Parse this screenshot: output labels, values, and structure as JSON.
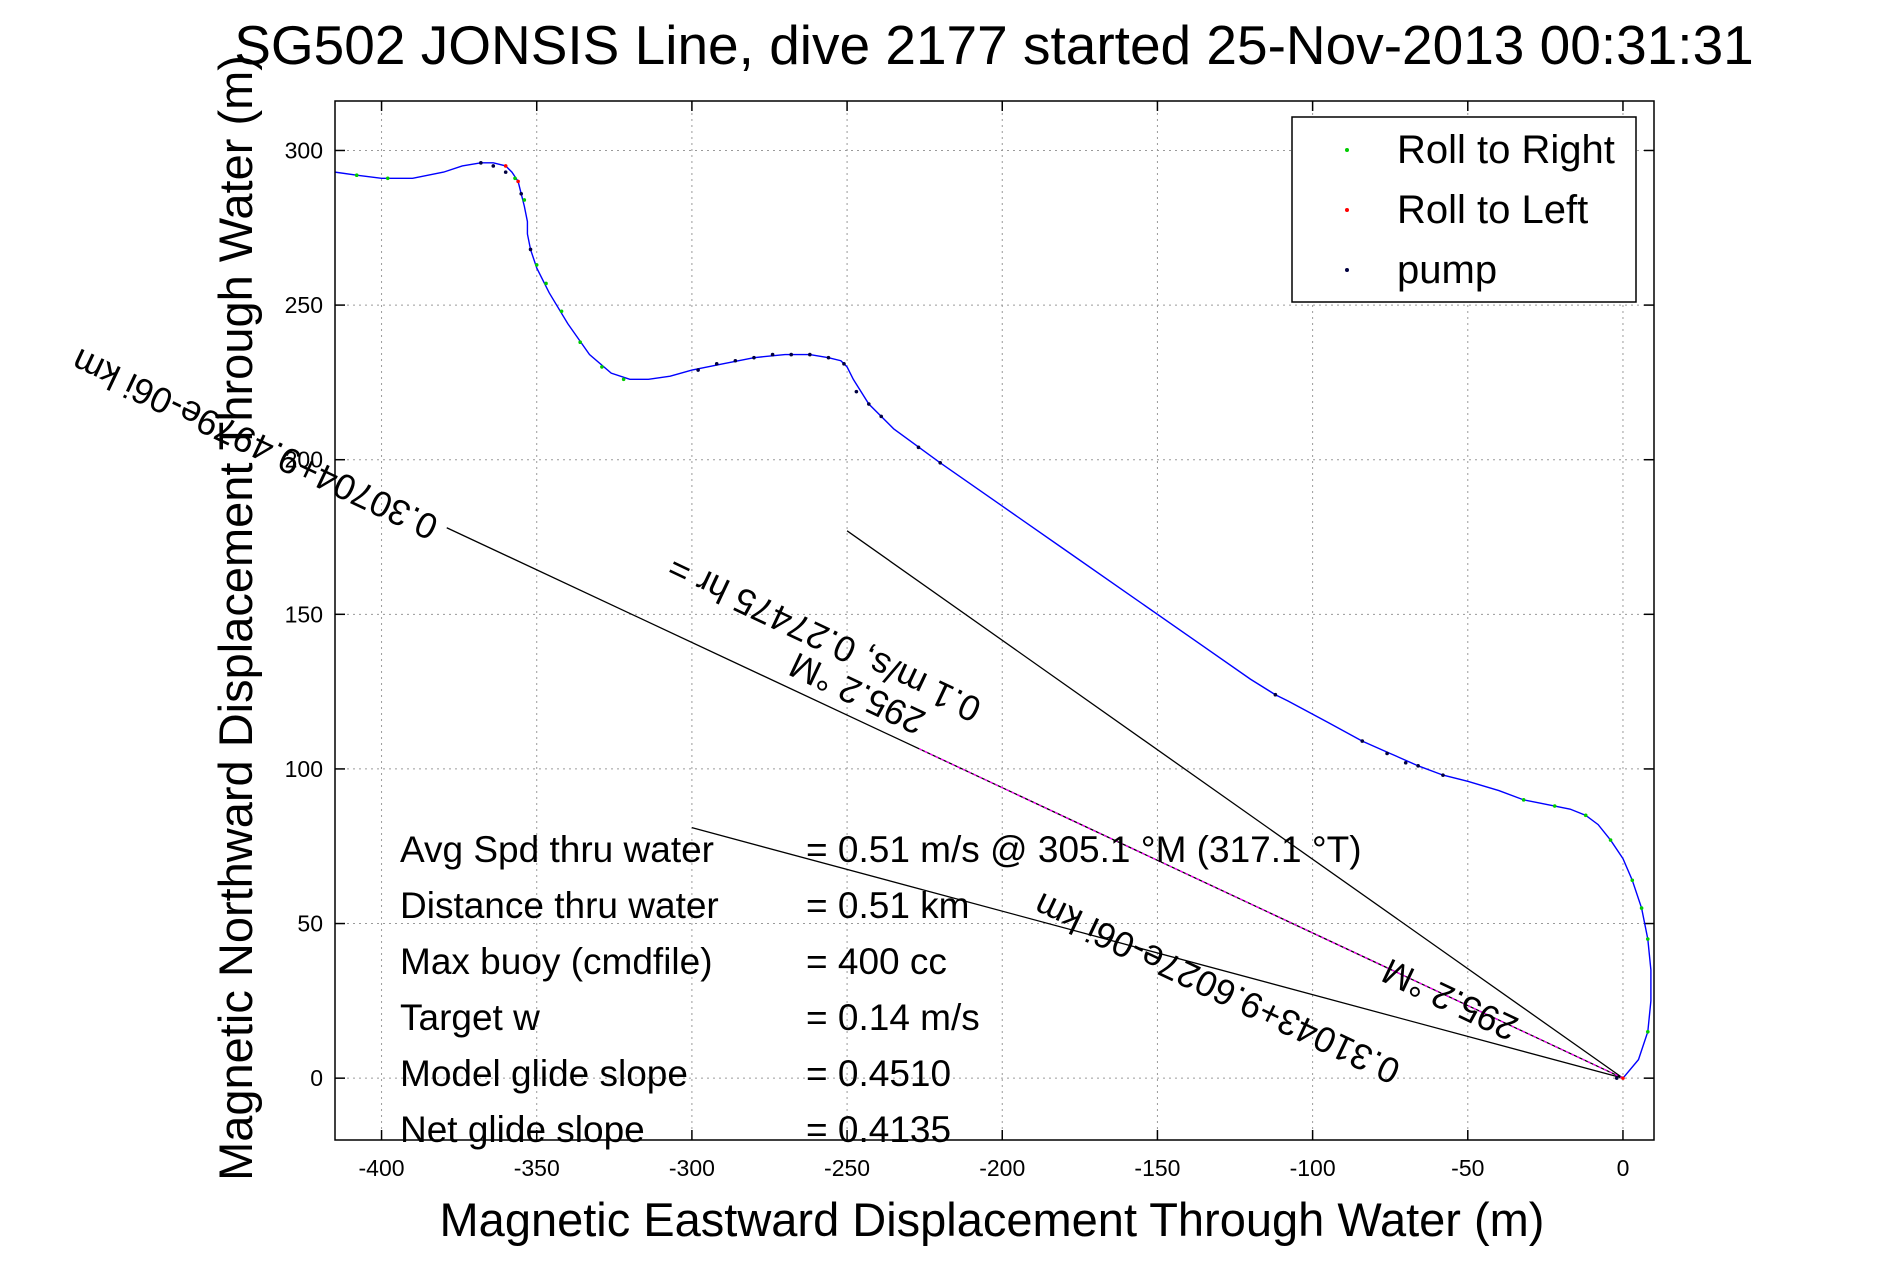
{
  "chart_data": {
    "type": "line",
    "title": "SG502 JONSIS Line, dive 2177 started 25-Nov-2013 00:31:31",
    "xlabel": "Magnetic Eastward Displacement Through Water (m)",
    "ylabel": "Magnetic Northward Displacement Through Water (m)",
    "xlim": [
      -415,
      10
    ],
    "ylim": [
      -20,
      316
    ],
    "xticks": [
      -400,
      -350,
      -300,
      -250,
      -200,
      -150,
      -100,
      -50,
      0
    ],
    "yticks": [
      0,
      50,
      100,
      150,
      200,
      250,
      300
    ],
    "grid": true,
    "legend_position": "top-right",
    "colors": {
      "track": "#0000ff",
      "roll_right": "#00cc00",
      "roll_left": "#ff0000",
      "pump": "#000040",
      "model_line": "#ff00ff",
      "guide_line": "#000000"
    },
    "legend": [
      {
        "label": "Roll to Right",
        "color": "#00cc00"
      },
      {
        "label": "Roll to Left",
        "color": "#ff0000"
      },
      {
        "label": "pump",
        "color": "#000040"
      }
    ],
    "series": [
      {
        "name": "track",
        "x": [
          0,
          5,
          8,
          9,
          9,
          8,
          6,
          3,
          0,
          -4,
          -8,
          -12,
          -17,
          -22,
          -27,
          -32,
          -40,
          -50,
          -58,
          -66,
          -75,
          -84,
          -95,
          -108,
          -112,
          -120,
          -140,
          -160,
          -180,
          -200,
          -220,
          -235,
          -243,
          -248,
          -250,
          -252,
          -256,
          -262,
          -270,
          -280,
          -290,
          -300,
          -307,
          -314,
          -320,
          -326,
          -333,
          -340,
          -346,
          -350,
          -352,
          -353,
          -353,
          -354,
          -355,
          -356,
          -358,
          -360,
          -364,
          -368,
          -374,
          -380,
          -390,
          -400,
          -408,
          -415
        ],
        "y": [
          0,
          6,
          15,
          25,
          35,
          45,
          55,
          64,
          71,
          77,
          82,
          85,
          87,
          88,
          89,
          90,
          93,
          96,
          98,
          101,
          105,
          109,
          115,
          122,
          124,
          129,
          143,
          157,
          171,
          185,
          199,
          210,
          218,
          226,
          230,
          232,
          233,
          234,
          234,
          233,
          231,
          229,
          227,
          226,
          226,
          228,
          234,
          244,
          254,
          262,
          268,
          273,
          277,
          282,
          286,
          290,
          293,
          295,
          296,
          296,
          295,
          293,
          291,
          291,
          292,
          293
        ]
      },
      {
        "name": "Roll to Right",
        "x": [
          8,
          8,
          6,
          3,
          -4,
          -12,
          -22,
          -32,
          -322,
          -329,
          -336,
          -342,
          -347,
          -350,
          -354,
          -357,
          -398,
          -408
        ],
        "y": [
          15,
          45,
          55,
          64,
          77,
          85,
          88,
          90,
          226,
          230,
          238,
          248,
          257,
          263,
          284,
          291,
          291,
          292
        ]
      },
      {
        "name": "Roll to Left",
        "x": [
          0,
          -356,
          -360
        ],
        "y": [
          0,
          290,
          295
        ]
      },
      {
        "name": "pump",
        "x": [
          -2,
          -58,
          -66,
          -70,
          -76,
          -84,
          -112,
          -220,
          -227,
          -239,
          -243,
          -247,
          -251,
          -256,
          -262,
          -268,
          -274,
          -280,
          -286,
          -292,
          -298,
          -352,
          -355,
          -360,
          -364,
          -368
        ],
        "y": [
          0,
          98,
          101,
          102,
          105,
          109,
          124,
          199,
          204,
          214,
          218,
          222,
          231,
          233,
          234,
          234,
          234,
          233,
          232,
          231,
          229,
          268,
          286,
          293,
          295,
          296
        ]
      }
    ],
    "reference_lines": [
      {
        "name": "model heading line",
        "from": [
          0,
          0
        ],
        "to": [
          -250,
          177
        ]
      },
      {
        "name": "net heading line",
        "from": [
          0,
          0
        ],
        "to": [
          -300,
          81
        ]
      },
      {
        "name": "current line",
        "from": [
          0,
          0
        ],
        "to": [
          -379,
          178
        ]
      }
    ],
    "annotations": [
      {
        "text": "0.30704+9.4979e-06i km",
        "x": -381,
        "y": 181,
        "rotation": 205.3
      },
      {
        "text": "295.2 °M",
        "x": -224,
        "y": 118,
        "rotation": 205.3
      },
      {
        "text": "0.1 m/s, 0.27475 hr =",
        "x": -206,
        "y": 122,
        "rotation": 205.3
      },
      {
        "text": "0.31043+9.6027e-06i km",
        "x": -71,
        "y": 5,
        "rotation": 205.3
      },
      {
        "text": "295.2 °M",
        "x": -33,
        "y": 19,
        "rotation": 205.3
      }
    ],
    "stats": [
      {
        "label": "Avg Spd thru water",
        "value": "=  0.51 m/s @ 305.1 °M (317.1 °T)"
      },
      {
        "label": "Distance thru water",
        "value": "=  0.51 km"
      },
      {
        "label": "Max buoy (cmdfile)",
        "value": "= 400 cc"
      },
      {
        "label": "Target w",
        "value": "= 0.14 m/s"
      },
      {
        "label": "Model glide slope",
        "value": "= 0.4510"
      },
      {
        "label": "Net glide slope",
        "value": "= 0.4135"
      }
    ]
  }
}
